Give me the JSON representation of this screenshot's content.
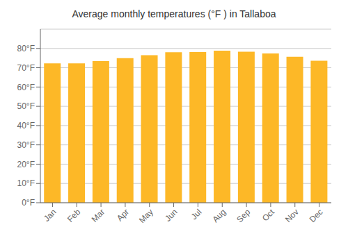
{
  "chart_data": {
    "type": "bar",
    "title": "Average monthly temperatures (°F ) in Tallaboa",
    "categories": [
      "Jan",
      "Feb",
      "Mar",
      "Apr",
      "May",
      "Jun",
      "Jul",
      "Aug",
      "Sep",
      "Oct",
      "Nov",
      "Dec"
    ],
    "values": [
      72.3,
      72.3,
      73.4,
      75.0,
      76.5,
      78.0,
      78.1,
      78.8,
      78.3,
      77.4,
      75.7,
      73.6
    ],
    "color": "#FDB827",
    "ylim": [
      0,
      90
    ],
    "yticks": [
      {
        "value": 0,
        "label": "0°F"
      },
      {
        "value": 10,
        "label": "10°F"
      },
      {
        "value": 20,
        "label": "20°F"
      },
      {
        "value": 30,
        "label": "30°F"
      },
      {
        "value": 40,
        "label": "40°F"
      },
      {
        "value": 50,
        "label": "50°F"
      },
      {
        "value": 60,
        "label": "60°F"
      },
      {
        "value": 70,
        "label": "70°F"
      },
      {
        "value": 80,
        "label": "80°F"
      }
    ],
    "grid": true
  }
}
